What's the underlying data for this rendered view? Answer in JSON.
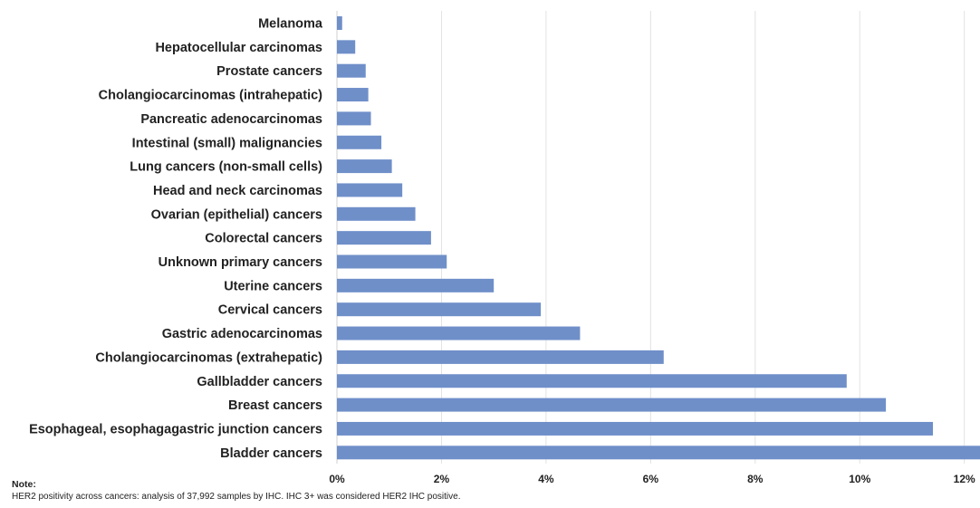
{
  "chart_data": {
    "type": "bar",
    "orientation": "horizontal",
    "categories": [
      "Melanoma",
      "Hepatocellular carcinomas",
      "Prostate cancers",
      "Cholangiocarcinomas (intrahepatic)",
      "Pancreatic adenocarcinomas",
      "Intestinal (small) malignancies",
      "Lung cancers (non-small cells)",
      "Head and neck carcinomas",
      "Ovarian (epithelial) cancers",
      "Colorectal cancers",
      "Unknown primary cancers",
      "Uterine cancers",
      "Cervical cancers",
      "Gastric adenocarcinomas",
      "Cholangiocarcinomas (extrahepatic)",
      "Gallbladder cancers",
      "Breast cancers",
      "Esophageal, esophagagastric junction cancers",
      "Bladder cancers"
    ],
    "values": [
      0.1,
      0.35,
      0.55,
      0.6,
      0.65,
      0.85,
      1.05,
      1.25,
      1.5,
      1.8,
      2.1,
      3.0,
      3.9,
      4.65,
      6.25,
      9.75,
      10.5,
      11.4,
      12.3
    ],
    "xlim": [
      0,
      12.3
    ],
    "xticks": [
      0,
      2,
      4,
      6,
      8,
      10,
      12
    ],
    "xtick_labels": [
      "0%",
      "2%",
      "4%",
      "6%",
      "8%",
      "10%",
      "12%"
    ],
    "bar_color": "#6f8fc9",
    "grid": "vertical",
    "title": "",
    "xlabel": "",
    "ylabel": ""
  },
  "note": {
    "title": "Note:",
    "text": "HER2 positivity across cancers: analysis of 37,992 samples by IHC. IHC 3+ was considered HER2 IHC positive."
  }
}
